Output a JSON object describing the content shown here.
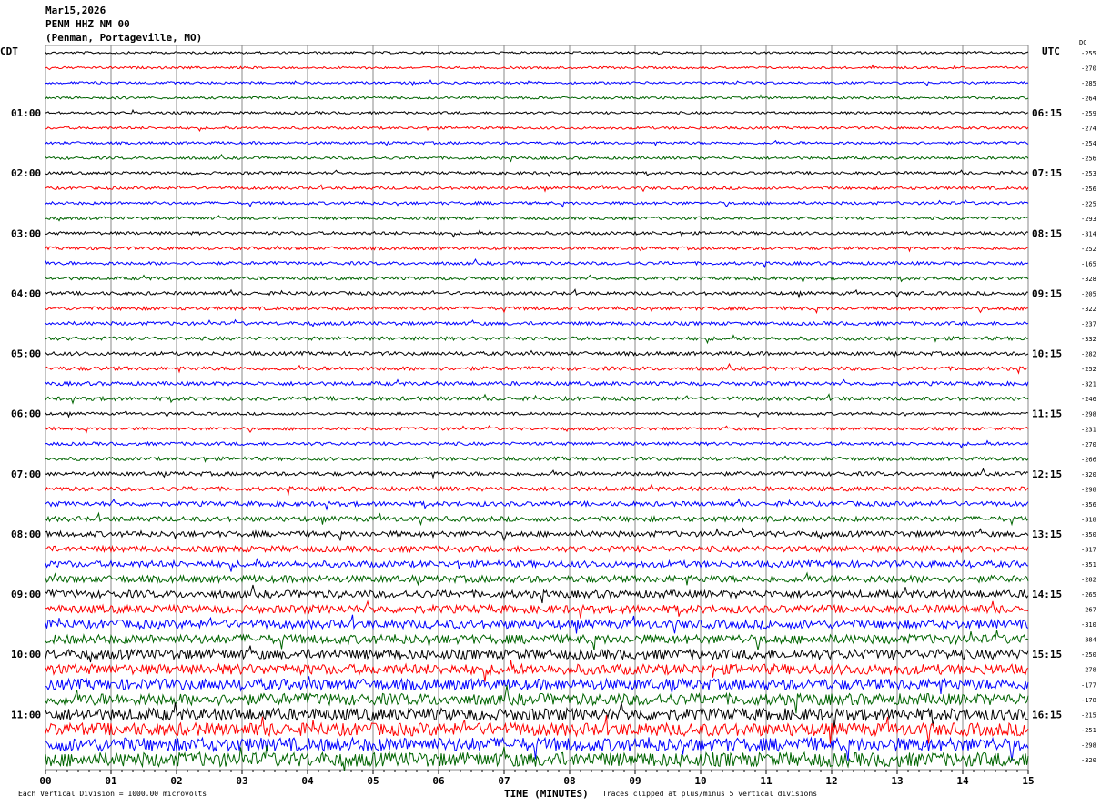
{
  "header": {
    "date": "Mar15,2026",
    "station": "PENM HHZ NM 00",
    "location": "(Penman, Portageville, MO)"
  },
  "left_tz": "CDT",
  "right_tz": "UTC",
  "dc_label": "DC",
  "footer": {
    "scale": "Each Vertical Division = 1000.00 microvolts",
    "xlabel": "TIME (MINUTES)",
    "clip": "Traces clipped at plus/minus 5 vertical divisions"
  },
  "chart_data": {
    "type": "line",
    "title": "PENM HHZ NM 00",
    "xlabel": "TIME (MINUTES)",
    "xlim": [
      0,
      15
    ],
    "x_ticks": [
      "00",
      "01",
      "02",
      "03",
      "04",
      "05",
      "06",
      "07",
      "08",
      "09",
      "10",
      "11",
      "12",
      "13",
      "14",
      "15"
    ],
    "left_hour_labels": [
      "01:00",
      "02:00",
      "03:00",
      "04:00",
      "05:00",
      "06:00",
      "07:00",
      "08:00",
      "09:00",
      "10:00",
      "11:00"
    ],
    "right_hour_labels": [
      "06:15",
      "07:15",
      "08:15",
      "09:15",
      "10:15",
      "11:15",
      "12:15",
      "13:15",
      "14:15",
      "15:15",
      "16:15"
    ],
    "trace_colors": [
      "#000000",
      "#ff0000",
      "#0000ff",
      "#006400"
    ],
    "dc_offsets": [
      -255,
      -270,
      -285,
      -264,
      -259,
      -274,
      -254,
      -256,
      -253,
      -256,
      -225,
      -293,
      -314,
      -252,
      -165,
      -328,
      -205,
      -322,
      -237,
      -332,
      -282,
      -252,
      -321,
      -246,
      -298,
      -231,
      -270,
      -266,
      -320,
      -298,
      -356,
      -318,
      -350,
      -317,
      -351,
      -282,
      -265,
      -267,
      -310,
      -384,
      -250,
      -278,
      -177,
      -178,
      -215,
      -251,
      -298,
      -320
    ],
    "grid": true
  }
}
